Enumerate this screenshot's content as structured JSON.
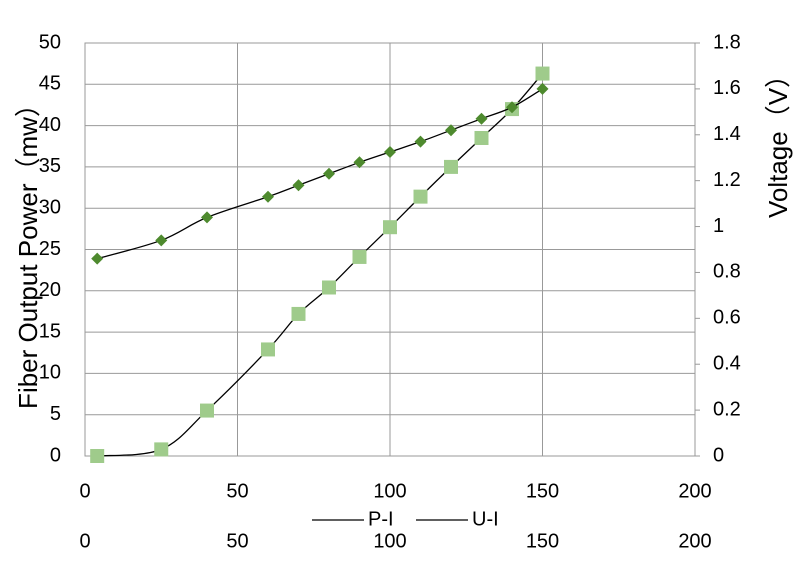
{
  "chart_data": {
    "type": "scatter",
    "y_label": "Fiber Output Power（mw）",
    "y2_label": "Voltage（V）",
    "xlim": [
      0,
      200
    ],
    "xticks": [
      0,
      50,
      100,
      150,
      200
    ],
    "x2lim": [
      0,
      200
    ],
    "x2ticks": [
      0,
      50,
      100,
      150,
      200
    ],
    "ylim": [
      0,
      50
    ],
    "yticks": [
      0,
      5,
      10,
      15,
      20,
      25,
      30,
      35,
      40,
      45,
      50
    ],
    "y2lim": [
      0,
      1.8
    ],
    "y2ticks": [
      0,
      0.2,
      0.4,
      0.6,
      0.8,
      1,
      1.2,
      1.4,
      1.6,
      1.8
    ],
    "grid": true,
    "legend": "bottom",
    "series": [
      {
        "name": "P-I",
        "color": "#9fcb8b",
        "marker": "square",
        "axis": "y",
        "x": [
          4,
          25,
          40,
          60,
          70,
          80,
          90,
          100,
          110,
          120,
          130,
          140,
          150
        ],
        "values": [
          0,
          0.8,
          5.5,
          12.9,
          17.2,
          20.4,
          24.1,
          27.7,
          31.4,
          35,
          38.5,
          42,
          46.3
        ]
      },
      {
        "name": "U-I",
        "color": "#4e8a2e",
        "marker": "diamond",
        "axis": "y2",
        "x": [
          4,
          25,
          40,
          60,
          70,
          80,
          90,
          100,
          110,
          120,
          130,
          140,
          150
        ],
        "values": [
          0.86,
          0.94,
          1.04,
          1.13,
          1.18,
          1.23,
          1.28,
          1.325,
          1.37,
          1.42,
          1.47,
          1.52,
          1.6
        ]
      }
    ]
  }
}
